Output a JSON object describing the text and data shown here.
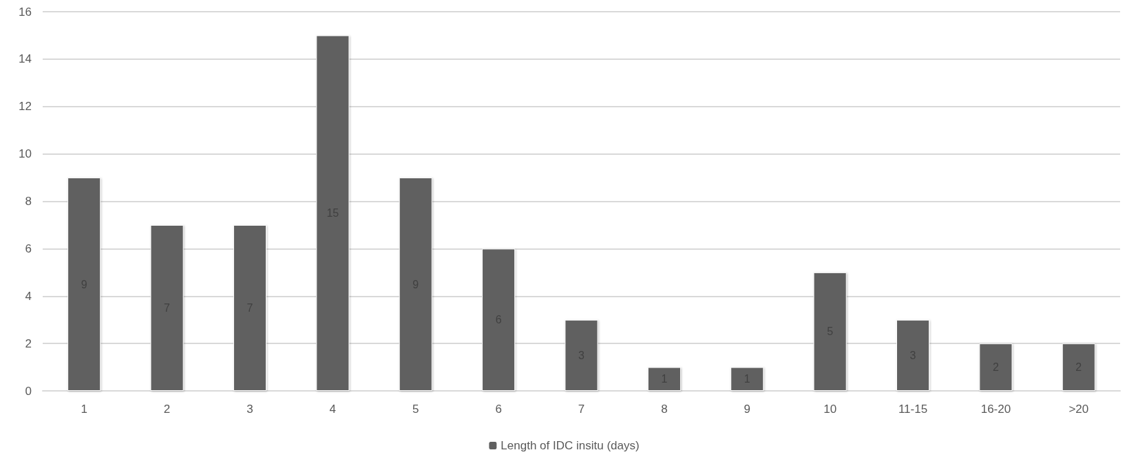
{
  "chart_data": {
    "type": "bar",
    "categories": [
      "1",
      "2",
      "3",
      "4",
      "5",
      "6",
      "7",
      "8",
      "9",
      "10",
      "11-15",
      "16-20",
      ">20"
    ],
    "series": [
      {
        "name": "Length of IDC insitu (days)",
        "color": "#606060",
        "values": [
          9,
          7,
          7,
          15,
          9,
          6,
          3,
          1,
          1,
          5,
          3,
          2,
          2
        ]
      }
    ],
    "ylim": [
      0,
      16
    ],
    "yticks": [
      0,
      2,
      4,
      6,
      8,
      10,
      12,
      14,
      16
    ],
    "grid": "y",
    "legend": "bottom",
    "data_labels": true
  }
}
